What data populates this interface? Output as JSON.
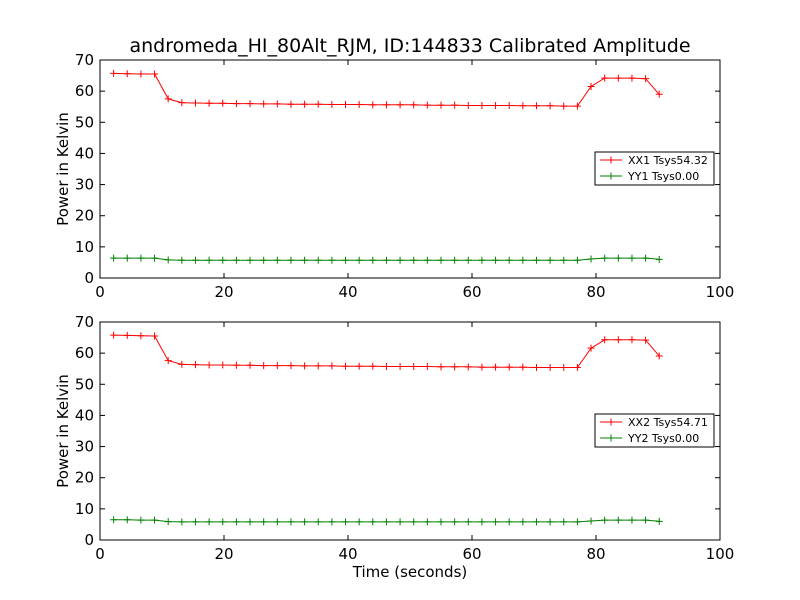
{
  "chart_data": [
    {
      "type": "line",
      "title": "andromeda_HI_80Alt_RJM, ID:144833 Calibrated Amplitude",
      "xlabel": "",
      "ylabel": "Power in Kelvin",
      "xlim": [
        0,
        100
      ],
      "ylim": [
        0,
        70
      ],
      "xticks": [
        "0",
        "20",
        "40",
        "60",
        "80",
        "100"
      ],
      "yticks": [
        "0",
        "10",
        "20",
        "30",
        "40",
        "50",
        "60",
        "70"
      ],
      "legend_position": "center-right",
      "series": [
        {
          "name": "XX1 Tsys54.32",
          "color": "#ff0000",
          "x": [
            2.2,
            4.4,
            6.6,
            8.8,
            11,
            13.2,
            15.4,
            17.6,
            19.8,
            22,
            24.2,
            26.4,
            28.6,
            30.8,
            33,
            35.2,
            37.4,
            39.6,
            41.8,
            44,
            46.2,
            48.4,
            50.6,
            52.8,
            55,
            57.2,
            59.4,
            61.6,
            63.8,
            66,
            68.2,
            70.4,
            72.6,
            74.8,
            77,
            79.2,
            81.4,
            83.6,
            85.8,
            88,
            90.2
          ],
          "y": [
            65.7,
            65.6,
            65.5,
            65.5,
            57.5,
            56.3,
            56.2,
            56.1,
            56.1,
            56.0,
            56.0,
            55.9,
            55.9,
            55.8,
            55.8,
            55.8,
            55.7,
            55.7,
            55.7,
            55.6,
            55.6,
            55.6,
            55.6,
            55.5,
            55.5,
            55.5,
            55.4,
            55.4,
            55.4,
            55.4,
            55.3,
            55.3,
            55.3,
            55.2,
            55.2,
            61.5,
            64.2,
            64.2,
            64.2,
            64.0,
            59.0
          ]
        },
        {
          "name": "YY1 Tsys0.00",
          "color": "#008000",
          "x": [
            2.2,
            4.4,
            6.6,
            8.8,
            11,
            13.2,
            15.4,
            17.6,
            19.8,
            22,
            24.2,
            26.4,
            28.6,
            30.8,
            33,
            35.2,
            37.4,
            39.6,
            41.8,
            44,
            46.2,
            48.4,
            50.6,
            52.8,
            55,
            57.2,
            59.4,
            61.6,
            63.8,
            66,
            68.2,
            70.4,
            72.6,
            74.8,
            77,
            79.2,
            81.4,
            83.6,
            85.8,
            88,
            90.2
          ],
          "y": [
            6.4,
            6.4,
            6.4,
            6.4,
            5.8,
            5.7,
            5.7,
            5.7,
            5.7,
            5.7,
            5.7,
            5.7,
            5.7,
            5.7,
            5.7,
            5.7,
            5.7,
            5.7,
            5.7,
            5.7,
            5.7,
            5.7,
            5.7,
            5.7,
            5.7,
            5.7,
            5.7,
            5.7,
            5.7,
            5.7,
            5.7,
            5.7,
            5.7,
            5.7,
            5.7,
            6.1,
            6.4,
            6.4,
            6.4,
            6.4,
            6.0
          ]
        }
      ]
    },
    {
      "type": "line",
      "title": "",
      "xlabel": "Time (seconds)",
      "ylabel": "Power in Kelvin",
      "xlim": [
        0,
        100
      ],
      "ylim": [
        0,
        70
      ],
      "xticks": [
        "0",
        "20",
        "40",
        "60",
        "80",
        "100"
      ],
      "yticks": [
        "0",
        "10",
        "20",
        "30",
        "40",
        "50",
        "60",
        "70"
      ],
      "legend_position": "center-right",
      "series": [
        {
          "name": "XX2 Tsys54.71",
          "color": "#ff0000",
          "x": [
            2.2,
            4.4,
            6.6,
            8.8,
            11,
            13.2,
            15.4,
            17.6,
            19.8,
            22,
            24.2,
            26.4,
            28.6,
            30.8,
            33,
            35.2,
            37.4,
            39.6,
            41.8,
            44,
            46.2,
            48.4,
            50.6,
            52.8,
            55,
            57.2,
            59.4,
            61.6,
            63.8,
            66,
            68.2,
            70.4,
            72.6,
            74.8,
            77,
            79.2,
            81.4,
            83.6,
            85.8,
            88,
            90.2
          ],
          "y": [
            65.8,
            65.7,
            65.6,
            65.5,
            57.6,
            56.4,
            56.3,
            56.2,
            56.2,
            56.1,
            56.1,
            56.0,
            56.0,
            56.0,
            55.9,
            55.9,
            55.9,
            55.8,
            55.8,
            55.8,
            55.7,
            55.7,
            55.7,
            55.7,
            55.6,
            55.6,
            55.6,
            55.5,
            55.5,
            55.5,
            55.5,
            55.4,
            55.4,
            55.4,
            55.4,
            61.6,
            64.3,
            64.3,
            64.3,
            64.2,
            59.1
          ]
        },
        {
          "name": "YY2 Tsys0.00",
          "color": "#008000",
          "x": [
            2.2,
            4.4,
            6.6,
            8.8,
            11,
            13.2,
            15.4,
            17.6,
            19.8,
            22,
            24.2,
            26.4,
            28.6,
            30.8,
            33,
            35.2,
            37.4,
            39.6,
            41.8,
            44,
            46.2,
            48.4,
            50.6,
            52.8,
            55,
            57.2,
            59.4,
            61.6,
            63.8,
            66,
            68.2,
            70.4,
            72.6,
            74.8,
            77,
            79.2,
            81.4,
            83.6,
            85.8,
            88,
            90.2
          ],
          "y": [
            6.5,
            6.5,
            6.4,
            6.4,
            5.9,
            5.8,
            5.8,
            5.8,
            5.8,
            5.8,
            5.8,
            5.8,
            5.8,
            5.8,
            5.8,
            5.8,
            5.8,
            5.8,
            5.8,
            5.8,
            5.8,
            5.8,
            5.8,
            5.8,
            5.8,
            5.8,
            5.8,
            5.8,
            5.8,
            5.8,
            5.8,
            5.8,
            5.8,
            5.8,
            5.8,
            6.1,
            6.4,
            6.4,
            6.4,
            6.4,
            6.0
          ]
        }
      ]
    }
  ]
}
